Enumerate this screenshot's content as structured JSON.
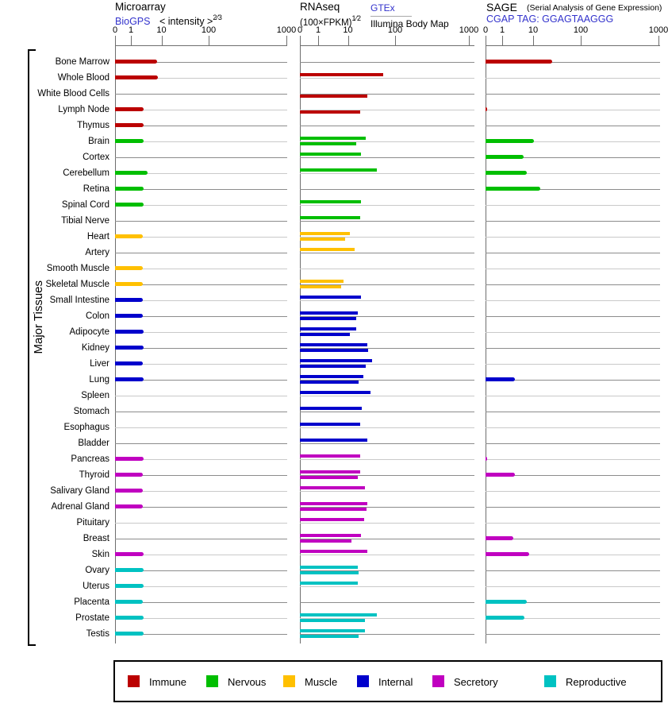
{
  "side_label": "Major Tissues",
  "ticks": [
    "0",
    "1",
    "10",
    "100",
    "1000"
  ],
  "headers": {
    "microarray": {
      "title": "Microarray",
      "link": "BioGPS",
      "scale": "< intensity >",
      "scale_sup": "2⁄3"
    },
    "rnaseq": {
      "title": "RNAseq",
      "scale": "(100×FPKM)",
      "scale_sup": "1⁄2",
      "link": "GTEx",
      "source2": "Illumina Body Map"
    },
    "sage": {
      "title": "SAGE",
      "note": "(Serial Analysis of Gene Expression)",
      "link": "CGAP TAG: GGAGTAAGGG"
    }
  },
  "legend": [
    {
      "label": "Immune",
      "color": "#BB0000"
    },
    {
      "label": "Nervous",
      "color": "#00BE00"
    },
    {
      "label": "Muscle",
      "color": "#FFC000"
    },
    {
      "label": "Internal",
      "color": "#0000CC"
    },
    {
      "label": "Secretory",
      "color": "#C000C0"
    },
    {
      "label": "Reproductive",
      "color": "#00C2C2"
    }
  ],
  "chart_data": {
    "type": "bar",
    "orientation": "horizontal",
    "x_scale": {
      "ticks": [
        0,
        1,
        10,
        100,
        1000
      ],
      "note": "compressed log-like scale, identical on all three panels"
    },
    "panels": [
      "Microarray (BioGPS intensity^2/3)",
      "RNAseq GTEx (100xFPKM)^1/2",
      "RNAseq Illumina Body Map (100xFPKM)^1/2",
      "SAGE CGAP tag GGAGTAAGGG"
    ],
    "legend_position": "bottom",
    "rows": [
      {
        "tissue": "Bone Marrow",
        "group": "Immune",
        "microarray": 7.3,
        "rnaseq_gtex": null,
        "rnaseq_illumina": null,
        "sage": 25
      },
      {
        "tissue": "Whole Blood",
        "group": "Immune",
        "microarray": 7.6,
        "rnaseq_gtex": 56,
        "rnaseq_illumina": null,
        "sage": null
      },
      {
        "tissue": "White Blood Cells",
        "group": "Immune",
        "microarray": null,
        "rnaseq_gtex": null,
        "rnaseq_illumina": 26,
        "sage": null
      },
      {
        "tissue": "Lymph Node",
        "group": "Immune",
        "microarray": 2.6,
        "rnaseq_gtex": null,
        "rnaseq_illumina": 18,
        "sage": 0.1
      },
      {
        "tissue": "Thymus",
        "group": "Immune",
        "microarray": 2.6,
        "rnaseq_gtex": null,
        "rnaseq_illumina": null,
        "sage": null
      },
      {
        "tissue": "Brain",
        "group": "Nervous",
        "microarray": 2.6,
        "rnaseq_gtex": 24,
        "rnaseq_illumina": 15,
        "sage": 10.5
      },
      {
        "tissue": "Cortex",
        "group": "Nervous",
        "microarray": null,
        "rnaseq_gtex": 19,
        "rnaseq_illumina": null,
        "sage": 4.8
      },
      {
        "tissue": "Cerebellum",
        "group": "Nervous",
        "microarray": 3.6,
        "rnaseq_gtex": 41,
        "rnaseq_illumina": null,
        "sage": 6.3
      },
      {
        "tissue": "Retina",
        "group": "Nervous",
        "microarray": 2.6,
        "rnaseq_gtex": null,
        "rnaseq_illumina": null,
        "sage": 14
      },
      {
        "tissue": "Spinal Cord",
        "group": "Nervous",
        "microarray": 2.6,
        "rnaseq_gtex": 19,
        "rnaseq_illumina": null,
        "sage": null
      },
      {
        "tissue": "Tibial Nerve",
        "group": "Nervous",
        "microarray": null,
        "rnaseq_gtex": 18,
        "rnaseq_illumina": null,
        "sage": null
      },
      {
        "tissue": "Heart",
        "group": "Muscle",
        "microarray": 2.4,
        "rnaseq_gtex": 11,
        "rnaseq_illumina": 8,
        "sage": null
      },
      {
        "tissue": "Artery",
        "group": "Muscle",
        "microarray": null,
        "rnaseq_gtex": 14,
        "rnaseq_illumina": null,
        "sage": null
      },
      {
        "tissue": "Smooth Muscle",
        "group": "Muscle",
        "microarray": 2.4,
        "rnaseq_gtex": null,
        "rnaseq_illumina": null,
        "sage": null
      },
      {
        "tissue": "Skeletal Muscle",
        "group": "Muscle",
        "microarray": 2.4,
        "rnaseq_gtex": 7.1,
        "rnaseq_illumina": 6,
        "sage": null
      },
      {
        "tissue": "Small Intestine",
        "group": "Internal",
        "microarray": 2.5,
        "rnaseq_gtex": 19,
        "rnaseq_illumina": null,
        "sage": null
      },
      {
        "tissue": "Colon",
        "group": "Internal",
        "microarray": 2.5,
        "rnaseq_gtex": 16,
        "rnaseq_illumina": 15,
        "sage": null
      },
      {
        "tissue": "Adipocyte",
        "group": "Internal",
        "microarray": 2.6,
        "rnaseq_gtex": 15,
        "rnaseq_illumina": 11,
        "sage": null
      },
      {
        "tissue": "Kidney",
        "group": "Internal",
        "microarray": 2.6,
        "rnaseq_gtex": 26,
        "rnaseq_illumina": 27,
        "sage": null
      },
      {
        "tissue": "Liver",
        "group": "Internal",
        "microarray": 2.5,
        "rnaseq_gtex": 33,
        "rnaseq_illumina": 24,
        "sage": null
      },
      {
        "tissue": "Lung",
        "group": "Internal",
        "microarray": 2.6,
        "rnaseq_gtex": 21,
        "rnaseq_illumina": 17,
        "sage": 2.6
      },
      {
        "tissue": "Spleen",
        "group": "Internal",
        "microarray": null,
        "rnaseq_gtex": 30,
        "rnaseq_illumina": null,
        "sage": null
      },
      {
        "tissue": "Stomach",
        "group": "Internal",
        "microarray": null,
        "rnaseq_gtex": 20,
        "rnaseq_illumina": null,
        "sage": null
      },
      {
        "tissue": "Esophagus",
        "group": "Internal",
        "microarray": null,
        "rnaseq_gtex": 18,
        "rnaseq_illumina": null,
        "sage": null
      },
      {
        "tissue": "Bladder",
        "group": "Internal",
        "microarray": null,
        "rnaseq_gtex": 26,
        "rnaseq_illumina": null,
        "sage": null
      },
      {
        "tissue": "Pancreas",
        "group": "Secretory",
        "microarray": 2.6,
        "rnaseq_gtex": 18,
        "rnaseq_illumina": null,
        "sage": 0.1
      },
      {
        "tissue": "Thyroid",
        "group": "Secretory",
        "microarray": 2.5,
        "rnaseq_gtex": 18,
        "rnaseq_illumina": 16,
        "sage": 2.5
      },
      {
        "tissue": "Salivary Gland",
        "group": "Secretory",
        "microarray": 2.5,
        "rnaseq_gtex": 23,
        "rnaseq_illumina": null,
        "sage": null
      },
      {
        "tissue": "Adrenal Gland",
        "group": "Secretory",
        "microarray": 2.5,
        "rnaseq_gtex": 26,
        "rnaseq_illumina": 25,
        "sage": null
      },
      {
        "tissue": "Pituitary",
        "group": "Secretory",
        "microarray": null,
        "rnaseq_gtex": 22,
        "rnaseq_illumina": null,
        "sage": null
      },
      {
        "tissue": "Breast",
        "group": "Secretory",
        "microarray": null,
        "rnaseq_gtex": 19,
        "rnaseq_illumina": 12,
        "sage": 2.3
      },
      {
        "tissue": "Skin",
        "group": "Secretory",
        "microarray": 2.6,
        "rnaseq_gtex": 26,
        "rnaseq_illumina": null,
        "sage": 7.3
      },
      {
        "tissue": "Ovary",
        "group": "Reproductive",
        "microarray": 2.6,
        "rnaseq_gtex": 16,
        "rnaseq_illumina": 17,
        "sage": null
      },
      {
        "tissue": "Uterus",
        "group": "Reproductive",
        "microarray": 2.6,
        "rnaseq_gtex": 16,
        "rnaseq_illumina": null,
        "sage": null
      },
      {
        "tissue": "Placenta",
        "group": "Reproductive",
        "microarray": 2.5,
        "rnaseq_gtex": null,
        "rnaseq_illumina": null,
        "sage": 6.2
      },
      {
        "tissue": "Prostate",
        "group": "Reproductive",
        "microarray": 2.6,
        "rnaseq_gtex": 41,
        "rnaseq_illumina": 23,
        "sage": 5.1
      },
      {
        "tissue": "Testis",
        "group": "Reproductive",
        "microarray": 2.6,
        "rnaseq_gtex": 23,
        "rnaseq_illumina": 17,
        "sage": null
      }
    ]
  }
}
